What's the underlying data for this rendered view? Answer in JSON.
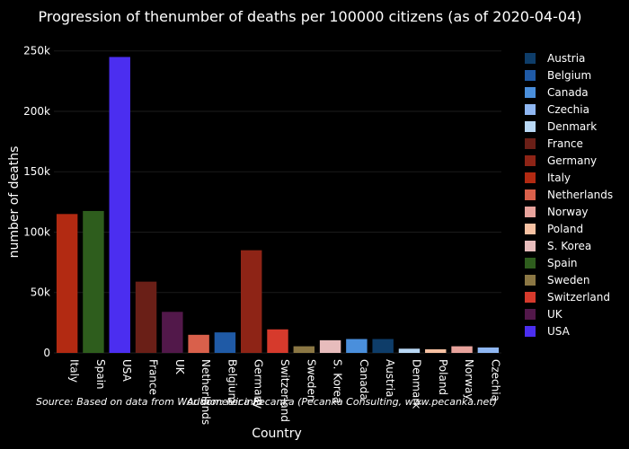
{
  "chart_data": {
    "type": "bar",
    "title": "Progression of thenumber of deaths per 100000 citizens (as of 2020-04-04)",
    "xlabel": "Country",
    "ylabel": "number of deaths",
    "ylim": [
      0,
      255000
    ],
    "yticks": [
      0,
      50000,
      100000,
      150000,
      200000,
      250000
    ],
    "ytick_labels": [
      "0",
      "50k",
      "100k",
      "150k",
      "200k",
      "250k"
    ],
    "categories": [
      "Italy",
      "Spain",
      "USA",
      "France",
      "UK",
      "Netherlands",
      "Belgium",
      "Germany",
      "Switzerland",
      "Sweden",
      "S. Korea",
      "Canada",
      "Austria",
      "Denmark",
      "Poland",
      "Norway",
      "Czechia"
    ],
    "values": [
      115000,
      117500,
      245000,
      59000,
      34000,
      15000,
      17000,
      85000,
      19500,
      5500,
      10500,
      11500,
      11500,
      3500,
      3000,
      5500,
      4500
    ],
    "colors": [
      "#b22a12",
      "#2e5d1d",
      "#4b2ef0",
      "#6a1f17",
      "#52184a",
      "#d9604b",
      "#1f5aa6",
      "#8e2416",
      "#d63a2c",
      "#8b7744",
      "#e7bcbc",
      "#4a8fdc",
      "#0e3d69",
      "#b9d8f5",
      "#f7c1a2",
      "#e8a39c",
      "#8fb7f2"
    ],
    "legend": [
      {
        "name": "Austria",
        "color": "#0e3d69"
      },
      {
        "name": "Belgium",
        "color": "#1f5aa6"
      },
      {
        "name": "Canada",
        "color": "#4a8fdc"
      },
      {
        "name": "Czechia",
        "color": "#8fb7f2"
      },
      {
        "name": "Denmark",
        "color": "#b9d8f5"
      },
      {
        "name": "France",
        "color": "#6a1f17"
      },
      {
        "name": "Germany",
        "color": "#8e2416"
      },
      {
        "name": "Italy",
        "color": "#b22a12"
      },
      {
        "name": "Netherlands",
        "color": "#d9604b"
      },
      {
        "name": "Norway",
        "color": "#e8a39c"
      },
      {
        "name": "Poland",
        "color": "#f7c1a2"
      },
      {
        "name": "S. Korea",
        "color": "#e7bcbc"
      },
      {
        "name": "Spain",
        "color": "#2e5d1d"
      },
      {
        "name": "Sweden",
        "color": "#8b7744"
      },
      {
        "name": "Switzerland",
        "color": "#d63a2c"
      },
      {
        "name": "UK",
        "color": "#52184a"
      },
      {
        "name": "USA",
        "color": "#4b2ef0"
      }
    ],
    "legend_position": "right",
    "annotations": [
      "Source: Based on data from Worldometer.info",
      "Author: Ivica Pecanka (Pecanka Consulting, www.pecanka.net)"
    ]
  }
}
